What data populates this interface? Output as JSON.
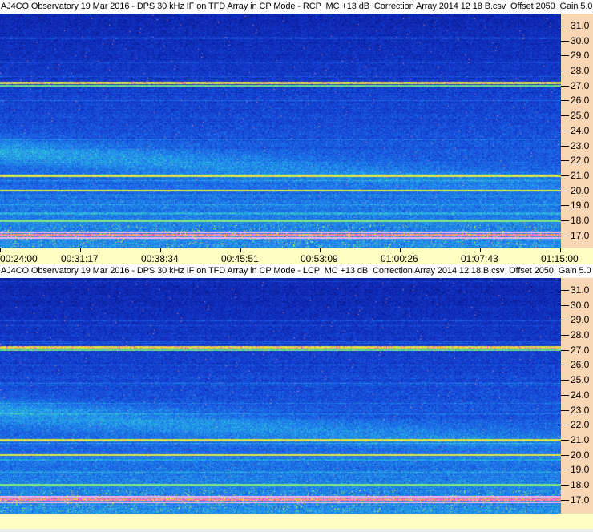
{
  "chart_data": [
    {
      "type": "heatmap",
      "title": "AJ4CO Observatory 19 Mar 2016 - DPS 30 kHz IF on TFD Array in CP Mode - RCP  MC +13 dB  Correction Array 2014 12 18 B.csv  Offset 2050  Gain 5.0",
      "polarization": "RCP",
      "y_ticks": [
        "31.0",
        "30.0",
        "29.0",
        "28.0",
        "27.0",
        "26.0",
        "25.0",
        "24.0",
        "23.0",
        "22.0",
        "21.0",
        "20.0",
        "19.0",
        "18.0",
        "17.0"
      ],
      "x_ticks": [
        "00:24:00",
        "00:31:17",
        "00:38:34",
        "00:45:51",
        "00:53:09",
        "01:00:26",
        "01:07:43",
        "01:15:00"
      ],
      "y_range": [
        16.2,
        31.8
      ],
      "x_range": [
        "00:24:00",
        "01:15:00"
      ],
      "features_mhz": [
        27.2,
        21.0,
        20.0,
        18.0,
        17.0
      ]
    },
    {
      "type": "heatmap",
      "title": "AJ4CO Observatory 19 Mar 2016 - DPS 30 kHz IF on TFD Array in CP Mode - LCP  MC +13 dB  Correction Array 2014 12 18 B.csv  Offset 2050  Gain 5.0",
      "polarization": "LCP",
      "y_ticks": [
        "31.0",
        "30.0",
        "29.0",
        "28.0",
        "27.0",
        "26.0",
        "25.0",
        "24.0",
        "23.0",
        "22.0",
        "21.0",
        "20.0",
        "19.0",
        "18.0",
        "17.0"
      ],
      "y_range": [
        16.2,
        31.8
      ],
      "features_mhz": [
        27.2,
        21.0,
        20.0,
        18.0,
        17.0
      ]
    }
  ],
  "colors": {
    "axis_bg": "#f9d6b4",
    "time_axis_bg": "#ffffc4",
    "low": "#0a1e9c",
    "mid": "#1e78e6",
    "high": "#ffff40"
  }
}
